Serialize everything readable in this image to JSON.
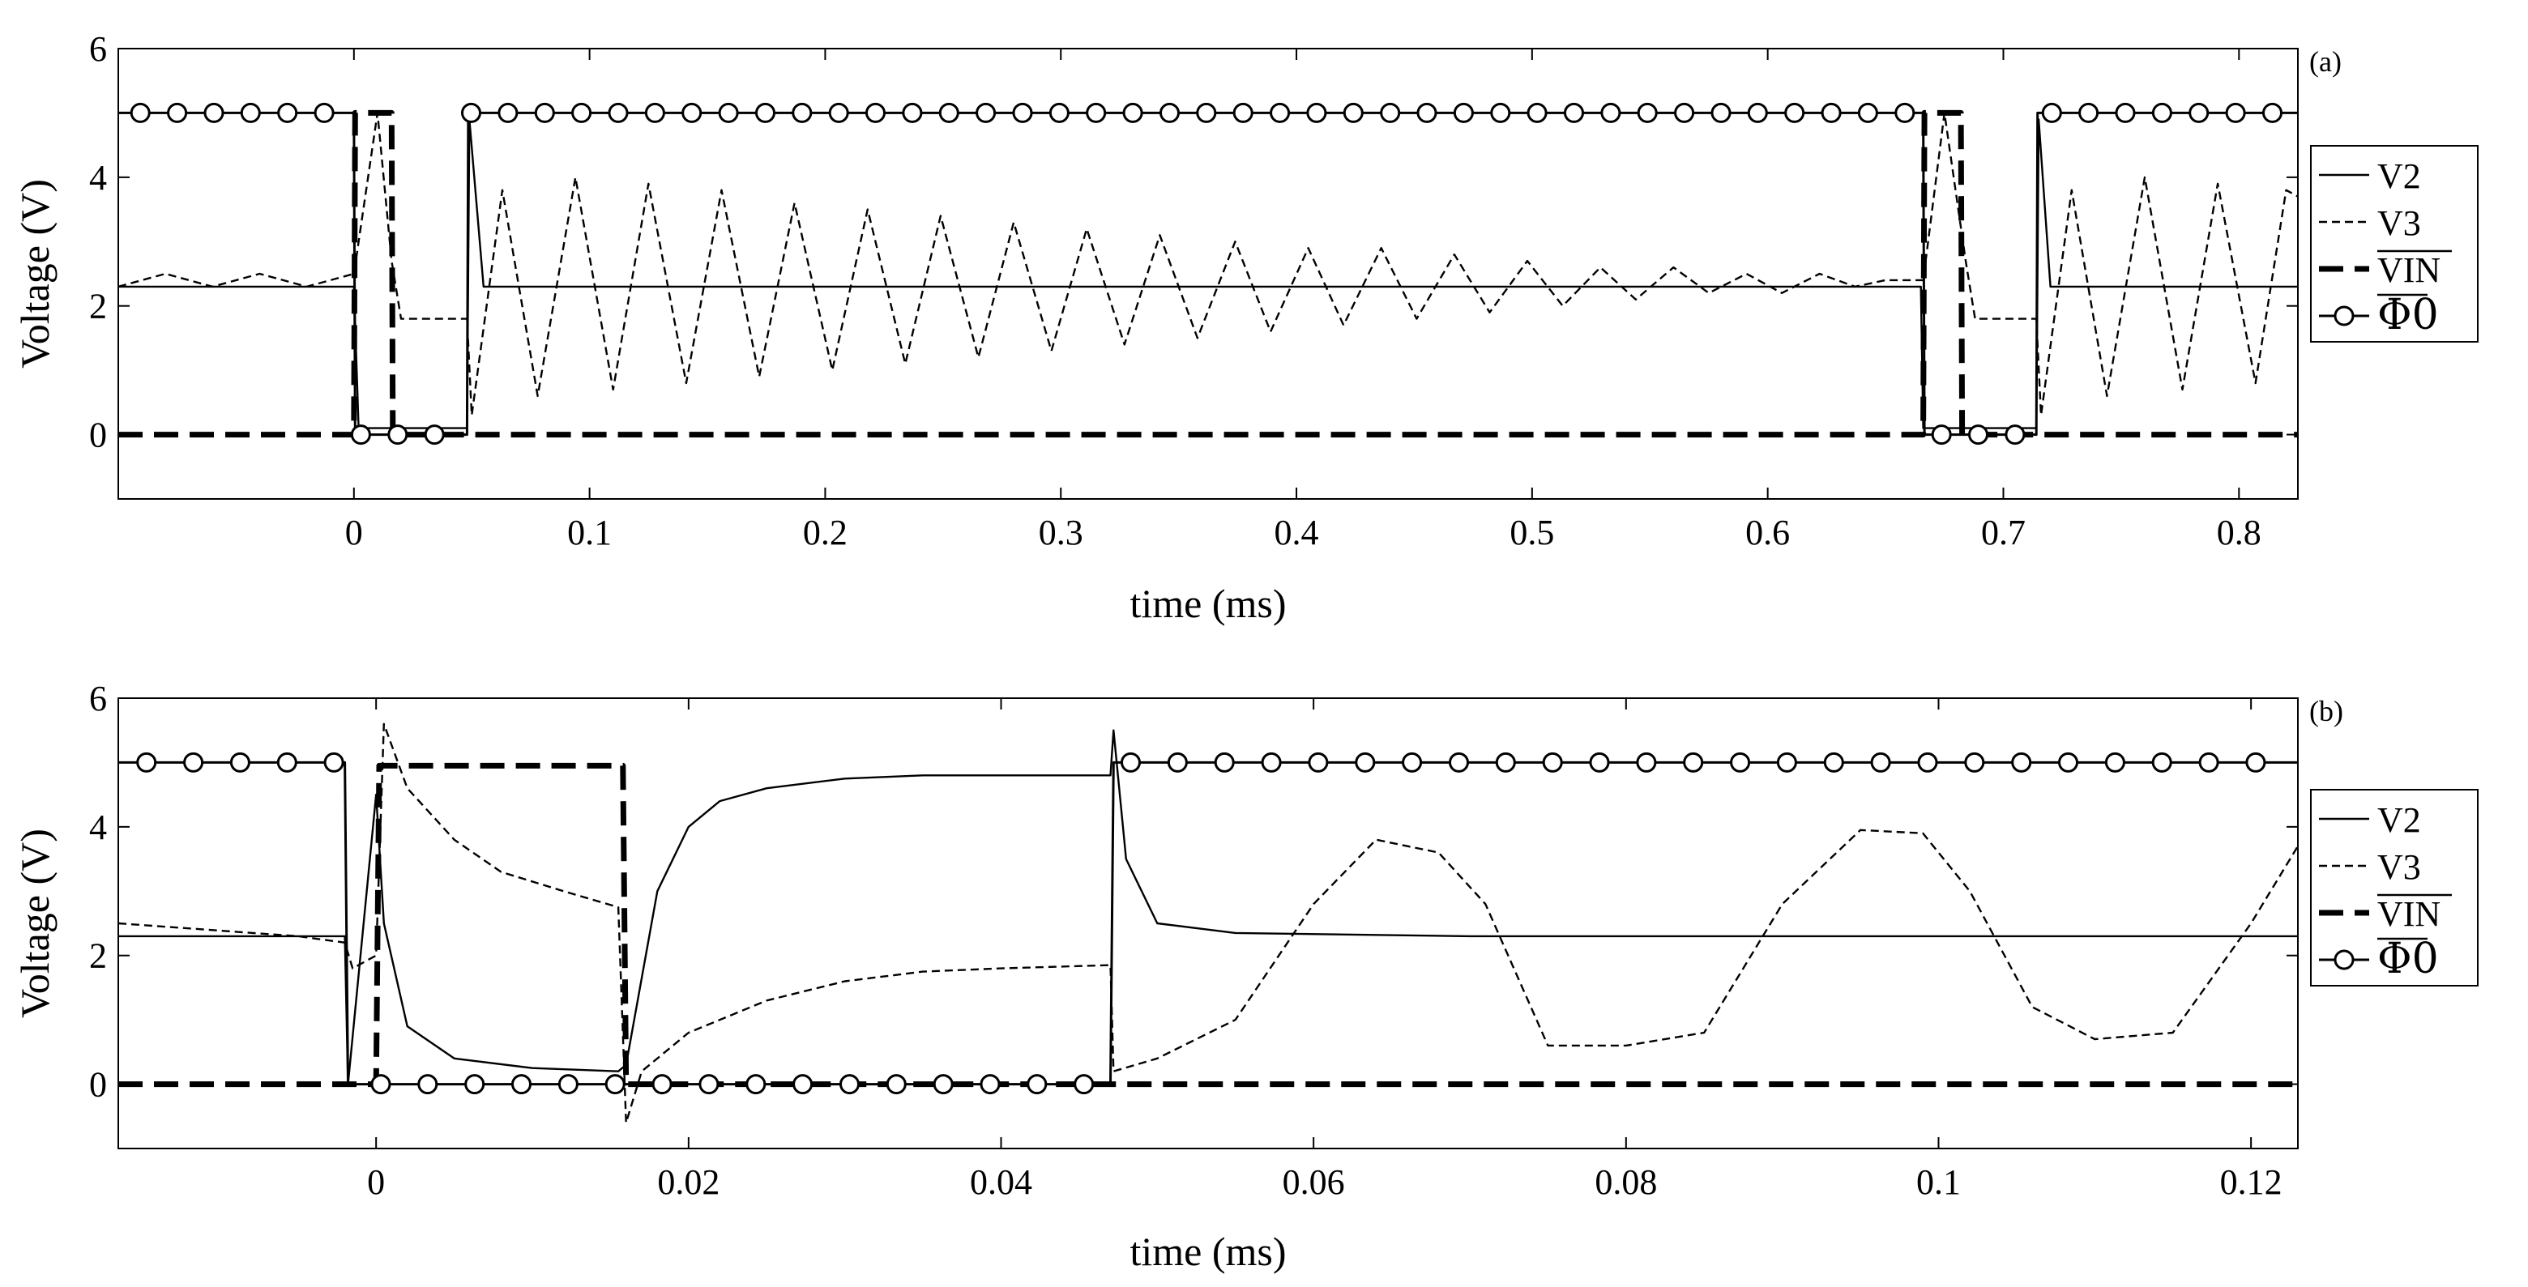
{
  "chart_data": [
    {
      "panel": "(a)",
      "type": "line",
      "xlabel": "time (ms)",
      "ylabel": "Voltage (V)",
      "xlim": [
        -0.1,
        0.825
      ],
      "ylim": [
        -1,
        6
      ],
      "xticks": [
        0,
        0.1,
        0.2,
        0.3,
        0.4,
        0.5,
        0.6,
        0.7,
        0.8
      ],
      "xtick_labels": [
        "0",
        "0.1",
        "0.2",
        "0.3",
        "0.4",
        "0.5",
        "0.6",
        "0.7",
        "0.8"
      ],
      "yticks": [
        0,
        2,
        4,
        6
      ],
      "ytick_labels": [
        "0",
        "2",
        "4",
        "6"
      ],
      "legend": [
        "V2",
        "V3",
        "VIN",
        "Φ0"
      ],
      "legend_position": "right",
      "series": [
        {
          "name": "V2",
          "style": "solid",
          "x": [
            -0.1,
            0,
            0.002,
            0.04,
            0.048,
            0.049,
            0.055,
            0.665,
            0.666,
            0.669,
            0.706,
            0.714,
            0.715,
            0.72,
            0.825
          ],
          "y": [
            2.3,
            2.3,
            0.1,
            0.1,
            0.1,
            4.9,
            2.3,
            2.3,
            0.1,
            0.1,
            0.1,
            0.1,
            4.9,
            2.3,
            2.3
          ]
        },
        {
          "name": "V3",
          "style": "dashed",
          "x": [
            -0.1,
            -0.08,
            -0.06,
            -0.04,
            -0.02,
            0,
            0.01,
            0.016,
            0.02,
            0.048,
            0.05,
            0.063,
            0.078,
            0.094,
            0.11,
            0.125,
            0.141,
            0.156,
            0.172,
            0.187,
            0.203,
            0.218,
            0.234,
            0.249,
            0.265,
            0.28,
            0.296,
            0.311,
            0.327,
            0.342,
            0.358,
            0.374,
            0.389,
            0.405,
            0.42,
            0.436,
            0.451,
            0.467,
            0.482,
            0.498,
            0.513,
            0.529,
            0.544,
            0.56,
            0.575,
            0.591,
            0.606,
            0.622,
            0.637,
            0.65,
            0.666,
            0.675,
            0.684,
            0.688,
            0.714,
            0.716,
            0.729,
            0.744,
            0.76,
            0.776,
            0.791,
            0.807,
            0.82,
            0.825
          ],
          "y": [
            2.3,
            2.5,
            2.3,
            2.5,
            2.3,
            2.5,
            5.0,
            2.7,
            1.8,
            1.8,
            0.3,
            3.8,
            0.6,
            4.0,
            0.7,
            3.9,
            0.8,
            3.8,
            0.9,
            3.6,
            1.0,
            3.5,
            1.1,
            3.4,
            1.2,
            3.3,
            1.3,
            3.2,
            1.4,
            3.1,
            1.5,
            3.0,
            1.6,
            2.9,
            1.7,
            2.9,
            1.8,
            2.8,
            1.9,
            2.7,
            2.0,
            2.6,
            2.1,
            2.6,
            2.2,
            2.5,
            2.2,
            2.5,
            2.3,
            2.4,
            2.4,
            5.0,
            2.7,
            1.8,
            1.8,
            0.3,
            3.8,
            0.6,
            4.0,
            0.7,
            3.9,
            0.8,
            3.8,
            3.7
          ]
        },
        {
          "name": "VIN",
          "style": "thick-dashed",
          "x": [
            -0.1,
            0,
            0.0005,
            0.016,
            0.0165,
            0.666,
            0.6665,
            0.682,
            0.6825,
            0.825
          ],
          "y": [
            0,
            0,
            5.0,
            5.0,
            0,
            0,
            5.0,
            5.0,
            0,
            0
          ]
        },
        {
          "name": "Φ0",
          "style": "solid-circle-markers",
          "marker_spacing_ms": 0.0156,
          "x": [
            -0.1,
            0,
            0.0005,
            0.048,
            0.0485,
            0.666,
            0.6665,
            0.714,
            0.7145,
            0.825
          ],
          "y": [
            5.0,
            5.0,
            0,
            0,
            5.0,
            5.0,
            0,
            0,
            5.0,
            5.0
          ]
        }
      ]
    },
    {
      "panel": "(b)",
      "type": "line",
      "xlabel": "time (ms)",
      "ylabel": "Voltage (V)",
      "xlim": [
        -0.0165,
        0.123
      ],
      "ylim": [
        -1,
        6
      ],
      "xticks": [
        0,
        0.02,
        0.04,
        0.06,
        0.08,
        0.1,
        0.12
      ],
      "xtick_labels": [
        "0",
        "0.02",
        "0.04",
        "0.06",
        "0.08",
        "0.1",
        "0.12"
      ],
      "yticks": [
        0,
        2,
        4,
        6
      ],
      "ytick_labels": [
        "0",
        "2",
        "4",
        "6"
      ],
      "legend": [
        "V2",
        "V3",
        "VIN",
        "Φ0"
      ],
      "legend_position": "right",
      "series": [
        {
          "name": "V2",
          "style": "solid",
          "x": [
            -0.0165,
            -0.002,
            -0.0018,
            0,
            0.0005,
            0.002,
            0.005,
            0.01,
            0.0155,
            0.016,
            0.018,
            0.02,
            0.022,
            0.025,
            0.03,
            0.035,
            0.04,
            0.047,
            0.0472,
            0.048,
            0.05,
            0.055,
            0.07,
            0.09,
            0.11,
            0.123
          ],
          "y": [
            2.3,
            2.3,
            0,
            4.5,
            2.5,
            0.9,
            0.4,
            0.25,
            0.2,
            0.3,
            3.0,
            4.0,
            4.4,
            4.6,
            4.75,
            4.8,
            4.8,
            4.8,
            5.5,
            3.5,
            2.5,
            2.35,
            2.3,
            2.3,
            2.3,
            2.3
          ]
        },
        {
          "name": "V3",
          "style": "dashed",
          "x": [
            -0.0165,
            -0.005,
            -0.002,
            -0.0015,
            0,
            0.0005,
            0.002,
            0.005,
            0.008,
            0.012,
            0.0155,
            0.016,
            0.017,
            0.02,
            0.025,
            0.03,
            0.035,
            0.04,
            0.047,
            0.0472,
            0.05,
            0.055,
            0.06,
            0.064,
            0.068,
            0.071,
            0.075,
            0.08,
            0.085,
            0.09,
            0.095,
            0.099,
            0.102,
            0.106,
            0.11,
            0.115,
            0.12,
            0.123
          ],
          "y": [
            2.5,
            2.3,
            2.2,
            1.8,
            2.0,
            5.6,
            4.6,
            3.8,
            3.3,
            3.0,
            2.75,
            -0.6,
            0.2,
            0.8,
            1.3,
            1.6,
            1.75,
            1.8,
            1.85,
            0.2,
            0.4,
            1.0,
            2.8,
            3.8,
            3.6,
            2.8,
            0.6,
            0.6,
            0.8,
            2.8,
            3.95,
            3.9,
            3.0,
            1.2,
            0.7,
            0.8,
            2.5,
            3.7
          ]
        },
        {
          "name": "VIN",
          "style": "thick-dashed",
          "x": [
            -0.0165,
            0,
            0.0002,
            0.0158,
            0.016,
            0.123
          ],
          "y": [
            0,
            0,
            4.95,
            4.95,
            0,
            0
          ]
        },
        {
          "name": "Φ0",
          "style": "solid-circle-markers",
          "marker_spacing_ms": 0.003,
          "x": [
            -0.0165,
            -0.002,
            -0.0018,
            0.047,
            0.0472,
            0.123
          ],
          "y": [
            5.0,
            5.0,
            0,
            0,
            5.0,
            5.0
          ]
        }
      ]
    }
  ]
}
